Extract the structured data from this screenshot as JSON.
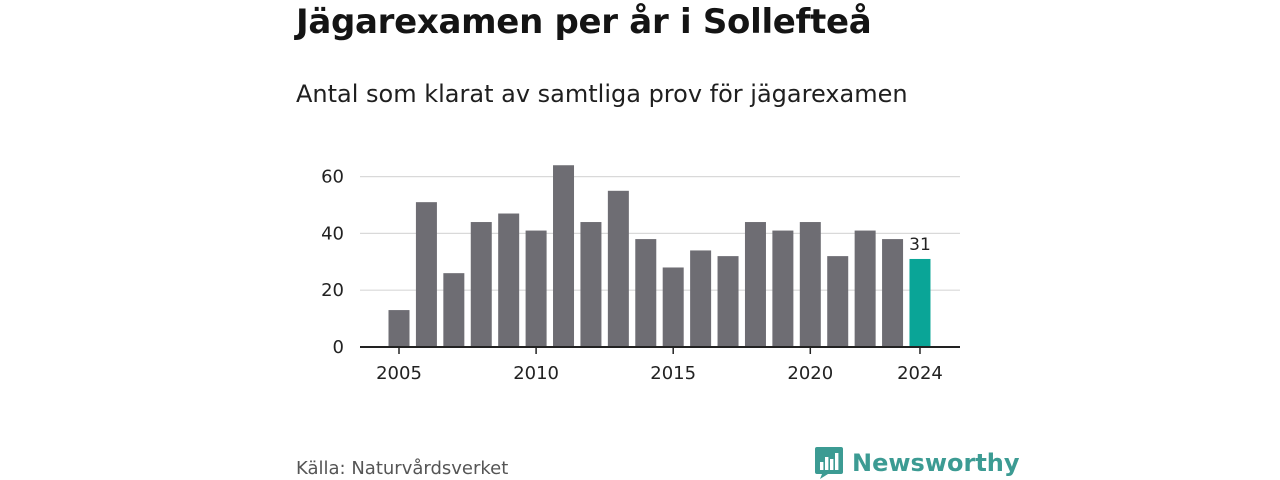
{
  "title": "Jägarexamen per år i Sollefteå",
  "subtitle": "Antal som klarat av samtliga prov för jägarexamen",
  "source": "Källa: Naturvårdsverket",
  "brand": "Newsworthy",
  "colors": {
    "bar": "#6e6d73",
    "highlight": "#0aa597",
    "grid": "#d9d9d9",
    "axis": "#222222",
    "brand": "#3c9b93"
  },
  "chart_data": {
    "type": "bar",
    "x": [
      2005,
      2006,
      2007,
      2008,
      2009,
      2010,
      2011,
      2012,
      2013,
      2014,
      2015,
      2016,
      2017,
      2018,
      2019,
      2020,
      2021,
      2022,
      2023,
      2024
    ],
    "values": [
      13,
      51,
      26,
      44,
      47,
      41,
      64,
      44,
      55,
      38,
      28,
      34,
      32,
      44,
      41,
      44,
      32,
      41,
      38,
      31
    ],
    "highlight_index": 19,
    "x_ticks": [
      "2005",
      "2010",
      "2015",
      "2020",
      "2024"
    ],
    "y_ticks": [
      "0",
      "20",
      "40",
      "60"
    ],
    "ylim": [
      0,
      70
    ],
    "data_labels": [
      {
        "index": 19,
        "text": "31"
      }
    ],
    "xlabel": "",
    "ylabel": "",
    "grid": "horizontal",
    "legend": "none"
  }
}
